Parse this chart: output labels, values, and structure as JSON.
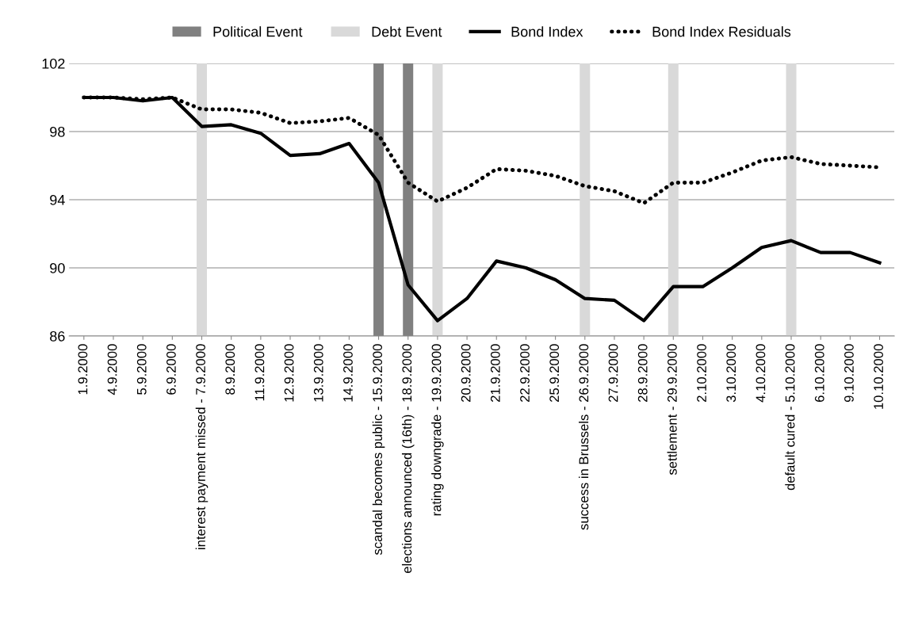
{
  "chart_data": {
    "type": "line",
    "categories": [
      "1.9.2000",
      "4.9.2000",
      "5.9.2000",
      "6.9.2000",
      "interest payment missed - 7.9.2000",
      "8.9.2000",
      "11.9.2000",
      "12.9.2000",
      "13.9.2000",
      "14.9.2000",
      "scandal becomes public - 15.9.2000",
      "elections announced (16th) - 18.9.2000",
      "rating downgrade - 19.9.2000",
      "20.9.2000",
      "21.9.2000",
      "22.9.2000",
      "25.9.2000",
      "success in Brussels - 26.9.2000",
      "27.9.2000",
      "28.9.2000",
      "settlement - 29.9.2000",
      "2.10.2000",
      "3.10.2000",
      "4.10.2000",
      "default cured - 5.10.2000",
      "6.10.2000",
      "9.10.2000",
      "10.10.2000"
    ],
    "series": [
      {
        "name": "Political Event",
        "type": "bar",
        "color": "#808080",
        "values": [
          null,
          null,
          null,
          null,
          null,
          null,
          null,
          null,
          null,
          null,
          102,
          102,
          null,
          null,
          null,
          null,
          null,
          null,
          null,
          null,
          null,
          null,
          null,
          null,
          null,
          null,
          null,
          null
        ]
      },
      {
        "name": "Debt Event",
        "type": "bar",
        "color": "#d9d9d9",
        "values": [
          null,
          null,
          null,
          null,
          102,
          null,
          null,
          null,
          null,
          null,
          null,
          null,
          102,
          null,
          null,
          null,
          null,
          102,
          null,
          null,
          102,
          null,
          null,
          null,
          102,
          null,
          null,
          null
        ]
      },
      {
        "name": "Bond Index",
        "line_style": "solid",
        "color": "#000000",
        "values": [
          100,
          100,
          99.8,
          100,
          98.3,
          98.4,
          97.9,
          96.6,
          96.7,
          97.3,
          95.0,
          89.0,
          86.9,
          88.2,
          90.4,
          90.0,
          89.3,
          88.2,
          88.1,
          86.9,
          88.9,
          88.9,
          90.0,
          91.2,
          91.6,
          90.9,
          90.9,
          90.3
        ]
      },
      {
        "name": "Bond Index Residuals",
        "line_style": "dotted",
        "color": "#000000",
        "values": [
          100,
          100,
          99.9,
          100,
          99.3,
          99.3,
          99.1,
          98.5,
          98.6,
          98.8,
          97.8,
          95.0,
          93.9,
          94.7,
          95.8,
          95.7,
          95.4,
          94.8,
          94.5,
          93.8,
          95.0,
          95.0,
          95.6,
          96.3,
          96.5,
          96.1,
          96.0,
          95.9
        ]
      }
    ],
    "ylim": [
      86,
      102
    ],
    "yticks": [
      86,
      90,
      94,
      98,
      102
    ],
    "grid": "y",
    "legend": "top",
    "marker": "none"
  }
}
